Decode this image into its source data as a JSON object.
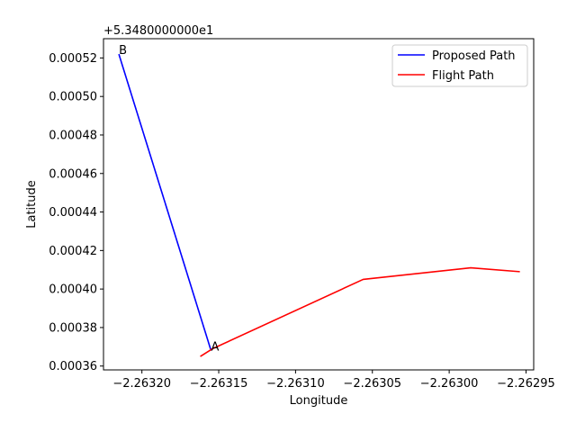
{
  "chart_data": {
    "type": "line",
    "title": "",
    "xlabel": "Longitude",
    "ylabel": "Latitude",
    "y_offset_label": "+5.3480000000e1",
    "xlim": [
      -2.263225,
      -2.262945
    ],
    "ylim": [
      0.000358,
      0.00053
    ],
    "x_ticks": [
      -2.2632,
      -2.26315,
      -2.2631,
      -2.26305,
      -2.263,
      -2.26295
    ],
    "x_tick_labels": [
      "−2.26320",
      "−2.26315",
      "−2.26310",
      "−2.26305",
      "−2.26300",
      "−2.26295"
    ],
    "y_ticks": [
      0.00036,
      0.00038,
      0.0004,
      0.00042,
      0.00044,
      0.00046,
      0.00048,
      0.0005,
      0.00052
    ],
    "y_tick_labels": [
      "0.00036",
      "0.00038",
      "0.00040",
      "0.00042",
      "0.00044",
      "0.00046",
      "0.00048",
      "0.00050",
      "0.00052"
    ],
    "grid": false,
    "legend_position": "upper-right",
    "series": [
      {
        "name": "Proposed Path",
        "color": "#0000ff",
        "x": [
          -2.263215,
          -2.263155
        ],
        "y": [
          0.000522,
          0.000368
        ]
      },
      {
        "name": "Flight Path",
        "color": "#ff0000",
        "x": [
          -2.263162,
          -2.263154,
          -2.263056,
          -2.262986,
          -2.262954
        ],
        "y": [
          0.000365,
          0.000369,
          0.000405,
          0.000411,
          0.000409
        ]
      }
    ],
    "annotations": [
      {
        "text": "B",
        "x": -2.263215,
        "y": 0.000522
      },
      {
        "text": "A",
        "x": -2.263155,
        "y": 0.000368
      }
    ]
  }
}
